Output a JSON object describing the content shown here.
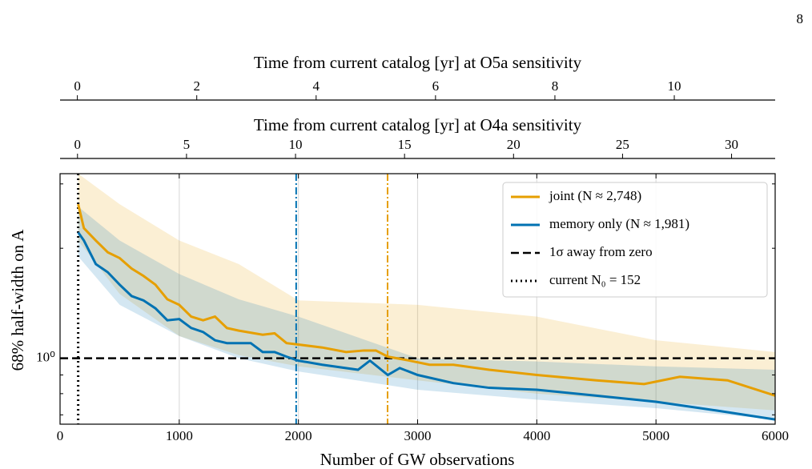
{
  "page_number": "8",
  "chart_data": {
    "type": "line",
    "xlabel": "Number of GW observations",
    "ylabel": "68% half-width on A",
    "xlim": [
      0,
      6000
    ],
    "xticks": [
      0,
      1000,
      2000,
      3000,
      4000,
      5000,
      6000
    ],
    "ylim": [
      0.66,
      3.2
    ],
    "log_y": true,
    "yticks": [
      {
        "value": 1,
        "label": "10⁰"
      }
    ],
    "yminor": [
      0.7,
      0.8,
      0.9,
      2,
      3
    ],
    "grid_x": [
      1000,
      2000,
      3000,
      4000,
      5000
    ],
    "legend": "upper right",
    "top_axes": [
      {
        "label": "Time from current catalog [yr] at O5a sensitivity",
        "xlim": [
          -0.29,
          11.69
        ],
        "xticks": [
          0,
          2,
          4,
          6,
          8,
          10
        ]
      },
      {
        "label": "Time from current catalog [yr] at O4a sensitivity",
        "xlim": [
          -0.8,
          32.0
        ],
        "xticks": [
          0,
          5,
          10,
          15,
          20,
          25,
          30
        ]
      }
    ],
    "series": [
      {
        "name": "joint (N ≈ 2,748)",
        "color": "#E69F00",
        "x": [
          152,
          200,
          300,
          400,
          500,
          600,
          700,
          800,
          900,
          1000,
          1100,
          1200,
          1300,
          1400,
          1500,
          1700,
          1800,
          1900,
          2000,
          2200,
          2400,
          2550,
          2650,
          2750,
          2900,
          3100,
          3300,
          3600,
          4000,
          4500,
          4900,
          5200,
          5600,
          6000
        ],
        "values": [
          2.64,
          2.27,
          2.1,
          1.95,
          1.88,
          1.76,
          1.68,
          1.59,
          1.45,
          1.4,
          1.3,
          1.27,
          1.3,
          1.21,
          1.19,
          1.16,
          1.17,
          1.1,
          1.09,
          1.07,
          1.04,
          1.05,
          1.05,
          1.01,
          0.99,
          0.96,
          0.96,
          0.93,
          0.9,
          0.87,
          0.85,
          0.89,
          0.87,
          0.79
        ],
        "band_x": [
          152,
          500,
          1000,
          1500,
          2000,
          3000,
          4000,
          5000,
          6000
        ],
        "band_upper": [
          3.2,
          2.64,
          2.1,
          1.81,
          1.44,
          1.4,
          1.3,
          1.12,
          1.04
        ],
        "band_lower": [
          2.1,
          1.5,
          1.15,
          1.02,
          0.95,
          0.87,
          0.8,
          0.76,
          0.72
        ]
      },
      {
        "name": "memory only (N ≈ 1,981)",
        "color": "#0072B2",
        "x": [
          152,
          200,
          300,
          400,
          500,
          600,
          700,
          800,
          900,
          1000,
          1100,
          1200,
          1300,
          1400,
          1600,
          1700,
          1800,
          1900,
          2000,
          2200,
          2500,
          2600,
          2750,
          2850,
          3000,
          3300,
          3600,
          4000,
          4500,
          5000,
          5500,
          6000
        ],
        "values": [
          2.21,
          2.1,
          1.81,
          1.72,
          1.59,
          1.48,
          1.44,
          1.37,
          1.27,
          1.28,
          1.21,
          1.18,
          1.12,
          1.1,
          1.1,
          1.04,
          1.04,
          1.01,
          0.985,
          0.96,
          0.93,
          0.985,
          0.9,
          0.94,
          0.9,
          0.855,
          0.83,
          0.82,
          0.79,
          0.76,
          0.72,
          0.68
        ],
        "band_x": [
          152,
          500,
          1000,
          1500,
          2000,
          3000,
          4000,
          5000,
          6000
        ],
        "band_upper": [
          2.6,
          2.1,
          1.7,
          1.45,
          1.3,
          1.0,
          0.98,
          0.95,
          0.93
        ],
        "band_lower": [
          1.9,
          1.4,
          1.15,
          1.0,
          0.92,
          0.82,
          0.77,
          0.73,
          0.68
        ]
      }
    ],
    "hline": {
      "name": "1σ away from zero",
      "value": 1,
      "color": "#000000",
      "style": "dashed"
    },
    "vlines": [
      {
        "name": "current N₀ = 152",
        "value": 152,
        "color": "#000000",
        "style": "dotted"
      },
      {
        "value": 1981,
        "color": "#0072B2",
        "style": "dashdot"
      },
      {
        "value": 2748,
        "color": "#E69F00",
        "style": "dashdot"
      }
    ]
  }
}
